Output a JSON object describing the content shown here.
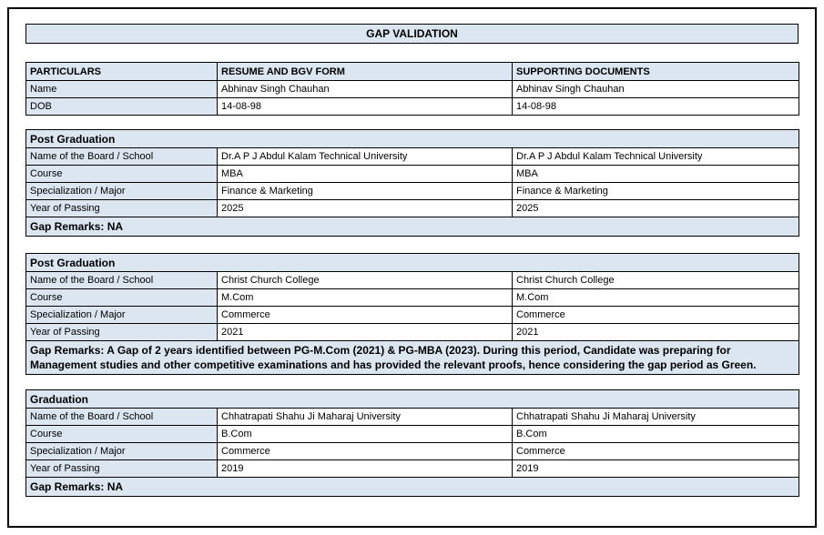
{
  "title": "GAP VALIDATION",
  "table_headers": [
    "PARTICULARS",
    "RESUME AND BGV FORM",
    "SUPPORTING DOCUMENTS"
  ],
  "personal": {
    "rows": [
      {
        "label": "Name",
        "resume": "Abhinav Singh Chauhan",
        "supporting": "Abhinav Singh Chauhan"
      },
      {
        "label": "DOB",
        "resume": "14-08-98",
        "supporting": "14-08-98"
      }
    ]
  },
  "sections": [
    {
      "heading": "Post Graduation",
      "rows": [
        {
          "label": "Name of the Board / School",
          "resume": "Dr.A P J Abdul Kalam Technical University",
          "supporting": "Dr.A P J Abdul Kalam Technical University"
        },
        {
          "label": "Course",
          "resume": "MBA",
          "supporting": "MBA"
        },
        {
          "label": "Specialization / Major",
          "resume": "Finance & Marketing",
          "supporting": "Finance & Marketing"
        },
        {
          "label": "Year of Passing",
          "resume": "2025",
          "supporting": "2025"
        }
      ],
      "gap_remarks": "Gap Remarks: NA"
    },
    {
      "heading": "Post Graduation",
      "rows": [
        {
          "label": "Name of the Board / School",
          "resume": "Christ Church College",
          "supporting": "Christ Church College"
        },
        {
          "label": "Course",
          "resume": "M.Com",
          "supporting": "M.Com"
        },
        {
          "label": "Specialization / Major",
          "resume": "Commerce",
          "supporting": "Commerce"
        },
        {
          "label": "Year of Passing",
          "resume": "2021",
          "supporting": "2021"
        }
      ],
      "gap_remarks": "Gap Remarks: A Gap of 2 years identified between PG-M.Com (2021) & PG-MBA (2023). During this period, Candidate was preparing for Management studies and other competitive examinations and has provided the relevant proofs, hence considering the gap period as Green."
    },
    {
      "heading": "Graduation",
      "rows": [
        {
          "label": "Name of the Board / School",
          "resume": "Chhatrapati Shahu Ji Maharaj University",
          "supporting": "Chhatrapati Shahu Ji Maharaj University"
        },
        {
          "label": "Course",
          "resume": "B.Com",
          "supporting": "B.Com"
        },
        {
          "label": "Specialization / Major",
          "resume": "Commerce",
          "supporting": "Commerce"
        },
        {
          "label": "Year of Passing",
          "resume": "2019",
          "supporting": "2019"
        }
      ],
      "gap_remarks": "Gap Remarks: NA"
    }
  ],
  "colors": {
    "header_fill": "#DCE6F1",
    "border": "#000000",
    "text": "#000000",
    "background": "#FFFFFF"
  }
}
